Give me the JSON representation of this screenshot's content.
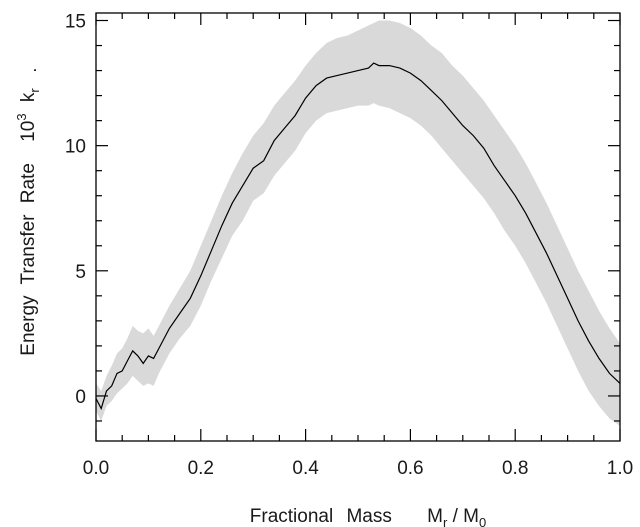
{
  "chart_data": {
    "type": "line",
    "title": "",
    "xlabel_parts": [
      "Fractional",
      "Mass",
      "M",
      "r",
      " / M",
      "0"
    ],
    "ylabel_parts": [
      "Energy",
      "Transfer",
      "Rate",
      "10",
      "3",
      "k",
      "r"
    ],
    "xlim": [
      0.0,
      1.0
    ],
    "ylim": [
      -1.8,
      15.3
    ],
    "x_ticks": [
      0.0,
      0.2,
      0.4,
      0.6,
      0.8,
      1.0
    ],
    "x_tick_labels": [
      "0.0",
      "0.2",
      "0.4",
      "0.6",
      "0.8",
      "1.0"
    ],
    "y_ticks": [
      0,
      5,
      10,
      15
    ],
    "y_tick_labels": [
      "0",
      "5",
      "10",
      "15"
    ],
    "grid": false,
    "line_color": "#000000",
    "band_color": "#d9d9d9",
    "series": [
      {
        "x": [
          0.0,
          0.01,
          0.02,
          0.03,
          0.04,
          0.05,
          0.06,
          0.07,
          0.08,
          0.09,
          0.1,
          0.11,
          0.12,
          0.14,
          0.16,
          0.18,
          0.2,
          0.22,
          0.24,
          0.26,
          0.28,
          0.3,
          0.32,
          0.34,
          0.36,
          0.38,
          0.4,
          0.42,
          0.44,
          0.46,
          0.48,
          0.5,
          0.52,
          0.53,
          0.54,
          0.56,
          0.58,
          0.6,
          0.62,
          0.64,
          0.66,
          0.68,
          0.7,
          0.72,
          0.74,
          0.76,
          0.78,
          0.8,
          0.82,
          0.84,
          0.86,
          0.88,
          0.9,
          0.92,
          0.94,
          0.96,
          0.98,
          1.0
        ],
        "y": [
          -0.1,
          -0.5,
          0.2,
          0.4,
          0.9,
          1.0,
          1.4,
          1.8,
          1.6,
          1.3,
          1.6,
          1.5,
          1.9,
          2.7,
          3.3,
          3.9,
          4.8,
          5.8,
          6.8,
          7.7,
          8.4,
          9.1,
          9.4,
          10.2,
          10.7,
          11.2,
          11.9,
          12.4,
          12.7,
          12.8,
          12.9,
          13.0,
          13.1,
          13.3,
          13.2,
          13.2,
          13.1,
          12.9,
          12.6,
          12.2,
          11.8,
          11.3,
          10.8,
          10.4,
          9.9,
          9.2,
          8.6,
          8.0,
          7.3,
          6.5,
          5.7,
          4.8,
          3.9,
          3.0,
          2.2,
          1.5,
          0.9,
          0.5
        ],
        "upper": [
          0.5,
          0.2,
          0.8,
          1.2,
          1.7,
          1.9,
          2.3,
          2.8,
          2.6,
          2.5,
          2.7,
          2.4,
          2.8,
          3.6,
          4.3,
          5.0,
          6.0,
          7.0,
          8.0,
          8.9,
          9.7,
          10.4,
          10.9,
          11.6,
          12.1,
          12.6,
          13.2,
          13.7,
          14.1,
          14.3,
          14.4,
          14.6,
          14.8,
          14.9,
          15.0,
          15.0,
          14.9,
          14.7,
          14.4,
          14.0,
          13.7,
          13.2,
          12.8,
          12.3,
          11.8,
          11.2,
          10.6,
          10.0,
          9.3,
          8.5,
          7.7,
          6.8,
          5.9,
          5.0,
          4.2,
          3.4,
          2.7,
          2.1
        ],
        "lower": [
          -0.6,
          -1.0,
          -0.4,
          -0.2,
          0.1,
          0.3,
          0.5,
          0.8,
          0.6,
          0.4,
          0.5,
          0.4,
          0.9,
          1.7,
          2.3,
          2.8,
          3.6,
          4.6,
          5.5,
          6.4,
          7.0,
          7.8,
          8.1,
          8.8,
          9.3,
          9.8,
          10.5,
          11.0,
          11.3,
          11.4,
          11.5,
          11.6,
          11.6,
          11.7,
          11.6,
          11.5,
          11.3,
          11.1,
          10.8,
          10.4,
          9.9,
          9.4,
          8.9,
          8.4,
          7.9,
          7.3,
          6.6,
          6.0,
          5.3,
          4.5,
          3.7,
          2.8,
          1.9,
          1.0,
          0.2,
          -0.4,
          -0.9,
          -1.2
        ]
      }
    ]
  }
}
